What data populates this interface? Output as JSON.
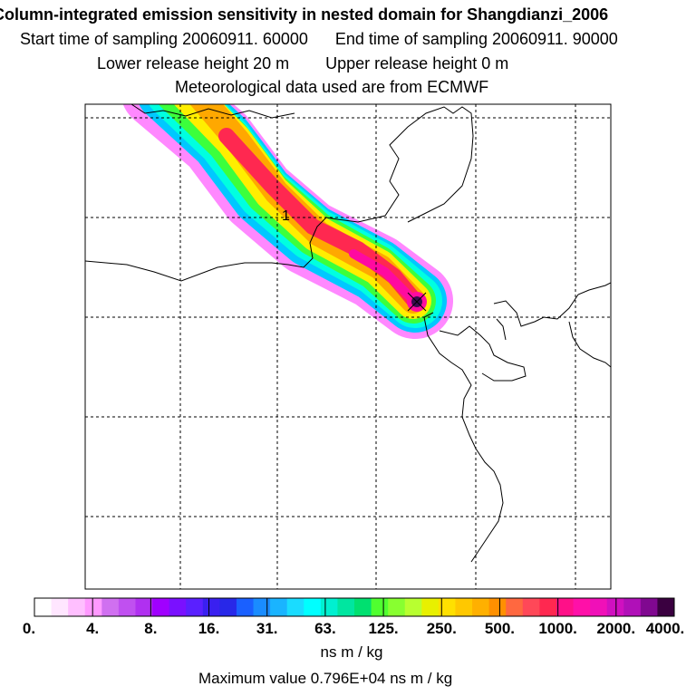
{
  "header": {
    "title": "Column-integrated emission sensitivity in nested domain for Shangdianzi_2006",
    "sampling_start": "Start time of sampling 20060911. 60000",
    "sampling_end": "End time of sampling 20060911. 90000",
    "release_lower": "Lower release height   20 m",
    "release_upper": "Upper release height    0 m",
    "met_source": "Meteorological data used are from ECMWF"
  },
  "map": {
    "release_marker_label": "1",
    "plume_colors": {
      "outer": "#ff88ff",
      "blue": "#00c8ff",
      "cyan": "#00ffe0",
      "green": "#3cff3c",
      "yellow": "#ffee00",
      "orange": "#ffa800",
      "red": "#ff2850",
      "magenta": "#ff0aa0",
      "core": "#3a0a50"
    }
  },
  "legend": {
    "colors": [
      "#ffffff",
      "#ffe6ff",
      "#ffbfff",
      "#ff99ff",
      "#d070f0",
      "#c050f0",
      "#b030f0",
      "#a000ff",
      "#7a10ff",
      "#5a20ff",
      "#3a20f0",
      "#2828e8",
      "#1a60ff",
      "#1a8cff",
      "#1ab4ff",
      "#1adcff",
      "#00ffff",
      "#00f0d0",
      "#00e6a0",
      "#00e070",
      "#50ff30",
      "#88ff30",
      "#b8ff30",
      "#e8f000",
      "#ffe000",
      "#ffc800",
      "#ffb000",
      "#ff9000",
      "#ff6840",
      "#ff4858",
      "#ff2850",
      "#ff1088",
      "#ff10a8",
      "#f010b8",
      "#d010c0",
      "#b010b8",
      "#800890",
      "#3a0040"
    ],
    "ticks": [
      {
        "label": "0.",
        "pos": 0
      },
      {
        "label": "4.",
        "pos": 1
      },
      {
        "label": "8.",
        "pos": 2
      },
      {
        "label": "16.",
        "pos": 3
      },
      {
        "label": "31.",
        "pos": 4
      },
      {
        "label": "63.",
        "pos": 5
      },
      {
        "label": "125.",
        "pos": 6
      },
      {
        "label": "250.",
        "pos": 7
      },
      {
        "label": "500.",
        "pos": 8
      },
      {
        "label": "1000.",
        "pos": 9
      },
      {
        "label": "2000.",
        "pos": 10
      },
      {
        "label": "4000.",
        "pos": 11
      }
    ],
    "units": "ns m / kg"
  },
  "footer": {
    "max_value": "Maximum value  0.796E+04 ns m / kg"
  }
}
